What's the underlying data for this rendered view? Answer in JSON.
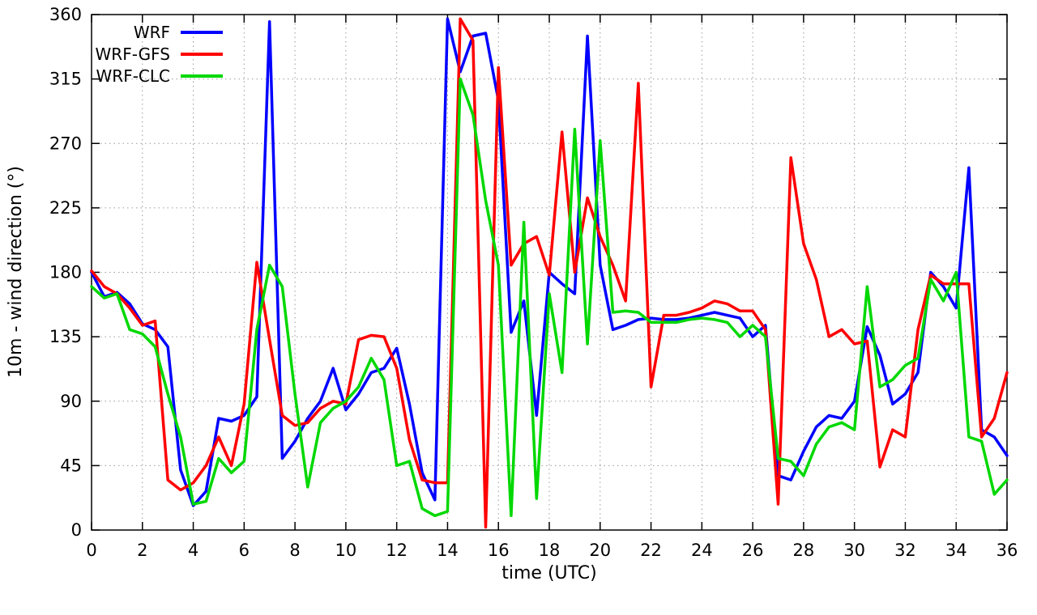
{
  "chart_data": {
    "type": "line",
    "title": "",
    "xlabel": "time (UTC)",
    "ylabel": "10m - wind direction (°)",
    "xlim": [
      0,
      36
    ],
    "ylim": [
      0,
      360
    ],
    "xticks": [
      0,
      2,
      4,
      6,
      8,
      10,
      12,
      14,
      16,
      18,
      20,
      22,
      24,
      26,
      28,
      30,
      32,
      34,
      36
    ],
    "yticks": [
      0,
      45,
      90,
      135,
      180,
      225,
      270,
      315,
      360
    ],
    "grid": true,
    "legend_position": "top-left",
    "x": [
      0,
      0.5,
      1,
      1.5,
      2,
      2.5,
      3,
      3.5,
      4,
      4.5,
      5,
      5.5,
      6,
      6.5,
      7,
      7.5,
      8,
      8.5,
      9,
      9.5,
      10,
      10.5,
      11,
      11.5,
      12,
      12.5,
      13,
      13.5,
      14,
      14.5,
      15,
      15.5,
      16,
      16.5,
      17,
      17.5,
      18,
      18.5,
      19,
      19.5,
      20,
      20.5,
      21,
      21.5,
      22,
      22.5,
      23,
      23.5,
      24,
      24.5,
      25,
      25.5,
      26,
      26.5,
      27,
      27.5,
      28,
      28.5,
      29,
      29.5,
      30,
      30.5,
      31,
      31.5,
      32,
      32.5,
      33,
      33.5,
      34,
      34.5,
      35,
      35.5,
      36
    ],
    "series": [
      {
        "name": "WRF",
        "color": "#0000ff",
        "values": [
          180,
          163,
          166,
          158,
          144,
          140,
          128,
          42,
          17,
          27,
          78,
          76,
          80,
          93,
          355,
          50,
          62,
          78,
          90,
          113,
          84,
          95,
          110,
          113,
          127,
          88,
          40,
          21,
          357,
          320,
          345,
          347,
          300,
          138,
          160,
          80,
          180,
          172,
          165,
          345,
          185,
          140,
          143,
          147,
          148,
          147,
          147,
          148,
          150,
          152,
          150,
          148,
          135,
          143,
          38,
          35,
          55,
          72,
          80,
          78,
          90,
          142,
          122,
          88,
          95,
          110,
          180,
          170,
          155,
          253,
          70,
          65,
          52
        ]
      },
      {
        "name": "WRF-GFS",
        "color": "#ff0000",
        "values": [
          181,
          170,
          165,
          155,
          143,
          146,
          35,
          28,
          33,
          45,
          65,
          45,
          88,
          187,
          133,
          80,
          73,
          75,
          85,
          90,
          88,
          133,
          136,
          135,
          113,
          63,
          35,
          33,
          33,
          357,
          342,
          2,
          323,
          185,
          200,
          205,
          178,
          278,
          180,
          232,
          205,
          185,
          160,
          312,
          100,
          150,
          150,
          152,
          155,
          160,
          158,
          153,
          153,
          140,
          18,
          260,
          200,
          175,
          135,
          140,
          130,
          132,
          44,
          70,
          65,
          140,
          178,
          172,
          172,
          172,
          65,
          78,
          110
        ]
      },
      {
        "name": "WRF-CLC",
        "color": "#00d800",
        "values": [
          170,
          162,
          165,
          140,
          137,
          128,
          95,
          65,
          18,
          20,
          50,
          40,
          48,
          140,
          185,
          170,
          95,
          30,
          75,
          85,
          90,
          100,
          120,
          105,
          45,
          48,
          15,
          10,
          13,
          315,
          290,
          230,
          185,
          10,
          215,
          22,
          165,
          110,
          280,
          130,
          272,
          152,
          153,
          152,
          145,
          145,
          145,
          147,
          148,
          147,
          145,
          135,
          143,
          135,
          50,
          48,
          38,
          60,
          72,
          75,
          70,
          170,
          100,
          105,
          115,
          120,
          175,
          160,
          180,
          65,
          62,
          25,
          35
        ]
      }
    ]
  }
}
